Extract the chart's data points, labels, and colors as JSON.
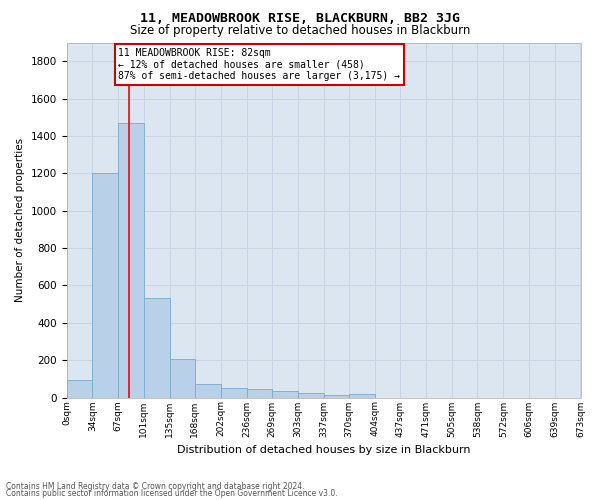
{
  "title": "11, MEADOWBROOK RISE, BLACKBURN, BB2 3JG",
  "subtitle": "Size of property relative to detached houses in Blackburn",
  "xlabel": "Distribution of detached houses by size in Blackburn",
  "ylabel": "Number of detached properties",
  "footnote1": "Contains HM Land Registry data © Crown copyright and database right 2024.",
  "footnote2": "Contains public sector information licensed under the Open Government Licence v3.0.",
  "bin_labels": [
    "0sqm",
    "34sqm",
    "67sqm",
    "101sqm",
    "135sqm",
    "168sqm",
    "202sqm",
    "236sqm",
    "269sqm",
    "303sqm",
    "337sqm",
    "370sqm",
    "404sqm",
    "437sqm",
    "471sqm",
    "505sqm",
    "538sqm",
    "572sqm",
    "606sqm",
    "639sqm",
    "673sqm"
  ],
  "bar_values": [
    95,
    1200,
    1470,
    535,
    205,
    70,
    50,
    45,
    35,
    25,
    12,
    18,
    0,
    0,
    0,
    0,
    0,
    0,
    0,
    0
  ],
  "bar_color": "#b8d0e8",
  "bar_edge_color": "#7aaacf",
  "grid_color": "#c8d4e4",
  "background_color": "#dce6f0",
  "red_line_x": 82,
  "annotation_line1": "11 MEADOWBROOK RISE: 82sqm",
  "annotation_line2": "← 12% of detached houses are smaller (458)",
  "annotation_line3": "87% of semi-detached houses are larger (3,175) →",
  "annotation_box_color": "white",
  "annotation_box_edge": "#cc0000",
  "ylim": [
    0,
    1900
  ],
  "yticks": [
    0,
    200,
    400,
    600,
    800,
    1000,
    1200,
    1400,
    1600,
    1800
  ],
  "left_edges": [
    0,
    34,
    67,
    101,
    135,
    168,
    202,
    236,
    269,
    303,
    337,
    370,
    404,
    437,
    471,
    505,
    538,
    572,
    606,
    639
  ],
  "xlim_max": 673
}
